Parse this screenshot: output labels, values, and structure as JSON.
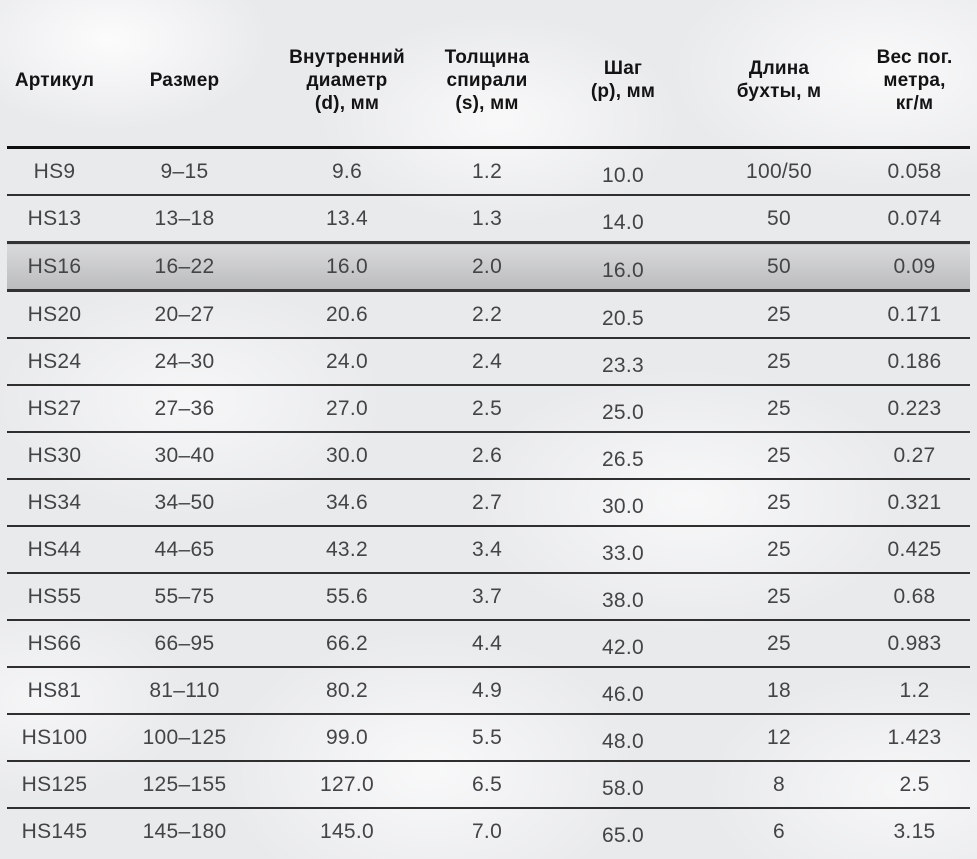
{
  "page": {
    "background_color": "#e9eaec",
    "text_color": "#434446",
    "header_text_color": "#131313",
    "separator_color": "#2f2f2f",
    "highlight_row_color": "#c9cacc"
  },
  "table": {
    "columns": [
      {
        "id": "article",
        "label": "Артикул",
        "lines": [
          "Артикул"
        ]
      },
      {
        "id": "size",
        "label": "Размер",
        "lines": [
          "Размер"
        ]
      },
      {
        "id": "inner-diameter",
        "label": "Внутренний диаметр (d), мм",
        "lines": [
          "Внутренний",
          "диаметр",
          "(d), мм"
        ]
      },
      {
        "id": "spiral-thickness",
        "label": "Толщина спирали (s), мм",
        "lines": [
          "Толщина",
          "спирали",
          "(s), мм"
        ]
      },
      {
        "id": "pitch",
        "label": "Шаг (р), мм",
        "lines": [
          "Шаг",
          "(р), мм"
        ]
      },
      {
        "id": "coil-length",
        "label": "Длина бухты, м",
        "lines": [
          "Длина",
          "бухты, м"
        ]
      },
      {
        "id": "weight",
        "label": "Вес пог. метра, кг/м",
        "lines": [
          "Вес пог.",
          "метра,",
          "кг/м"
        ]
      }
    ],
    "rows": [
      {
        "highlight": false,
        "values": [
          "HS9",
          "9–15",
          "9.6",
          "1.2",
          "10.0",
          "100/50",
          "0.058"
        ]
      },
      {
        "highlight": false,
        "values": [
          "HS13",
          "13–18",
          "13.4",
          "1.3",
          "14.0",
          "50",
          "0.074"
        ]
      },
      {
        "highlight": true,
        "values": [
          "HS16",
          "16–22",
          "16.0",
          "2.0",
          "16.0",
          "50",
          "0.09"
        ]
      },
      {
        "highlight": false,
        "values": [
          "HS20",
          "20–27",
          "20.6",
          "2.2",
          "20.5",
          "25",
          "0.171"
        ]
      },
      {
        "highlight": false,
        "values": [
          "HS24",
          "24–30",
          "24.0",
          "2.4",
          "23.3",
          "25",
          "0.186"
        ]
      },
      {
        "highlight": false,
        "values": [
          "HS27",
          "27–36",
          "27.0",
          "2.5",
          "25.0",
          "25",
          "0.223"
        ]
      },
      {
        "highlight": false,
        "values": [
          "HS30",
          "30–40",
          "30.0",
          "2.6",
          "26.5",
          "25",
          "0.27"
        ]
      },
      {
        "highlight": false,
        "values": [
          "HS34",
          "34–50",
          "34.6",
          "2.7",
          "30.0",
          "25",
          "0.321"
        ]
      },
      {
        "highlight": false,
        "values": [
          "HS44",
          "44–65",
          "43.2",
          "3.4",
          "33.0",
          "25",
          "0.425"
        ]
      },
      {
        "highlight": false,
        "values": [
          "HS55",
          "55–75",
          "55.6",
          "3.7",
          "38.0",
          "25",
          "0.68"
        ]
      },
      {
        "highlight": false,
        "values": [
          "HS66",
          "66–95",
          "66.2",
          "4.4",
          "42.0",
          "25",
          "0.983"
        ]
      },
      {
        "highlight": false,
        "values": [
          "HS81",
          "81–110",
          "80.2",
          "4.9",
          "46.0",
          "18",
          "1.2"
        ]
      },
      {
        "highlight": false,
        "values": [
          "HS100",
          "100–125",
          "99.0",
          "5.5",
          "48.0",
          "12",
          "1.423"
        ]
      },
      {
        "highlight": false,
        "values": [
          "HS125",
          "125–155",
          "127.0",
          "6.5",
          "58.0",
          "8",
          "2.5"
        ]
      },
      {
        "highlight": false,
        "values": [
          "HS145",
          "145–180",
          "145.0",
          "7.0",
          "65.0",
          "6",
          "3.15"
        ]
      }
    ]
  },
  "chart_data": {
    "type": "table",
    "title": "",
    "columns": [
      "Артикул",
      "Размер",
      "Внутренний диаметр (d), мм",
      "Толщина спирали (s), мм",
      "Шаг (р), мм",
      "Длина бухты, м",
      "Вес пог. метра, кг/м"
    ],
    "rows": [
      [
        "HS9",
        "9–15",
        9.6,
        1.2,
        10.0,
        "100/50",
        0.058
      ],
      [
        "HS13",
        "13–18",
        13.4,
        1.3,
        14.0,
        "50",
        0.074
      ],
      [
        "HS16",
        "16–22",
        16.0,
        2.0,
        16.0,
        "50",
        0.09
      ],
      [
        "HS20",
        "20–27",
        20.6,
        2.2,
        20.5,
        "25",
        0.171
      ],
      [
        "HS24",
        "24–30",
        24.0,
        2.4,
        23.3,
        "25",
        0.186
      ],
      [
        "HS27",
        "27–36",
        27.0,
        2.5,
        25.0,
        "25",
        0.223
      ],
      [
        "HS30",
        "30–40",
        30.0,
        2.6,
        26.5,
        "25",
        0.27
      ],
      [
        "HS34",
        "34–50",
        34.6,
        2.7,
        30.0,
        "25",
        0.321
      ],
      [
        "HS44",
        "44–65",
        43.2,
        3.4,
        33.0,
        "25",
        0.425
      ],
      [
        "HS55",
        "55–75",
        55.6,
        3.7,
        38.0,
        "25",
        0.68
      ],
      [
        "HS66",
        "66–95",
        66.2,
        4.4,
        42.0,
        "25",
        0.983
      ],
      [
        "HS81",
        "81–110",
        80.2,
        4.9,
        46.0,
        "18",
        1.2
      ],
      [
        "HS100",
        "100–125",
        99.0,
        5.5,
        48.0,
        "12",
        1.423
      ],
      [
        "HS125",
        "125–155",
        127.0,
        6.5,
        58.0,
        "8",
        2.5
      ],
      [
        "HS145",
        "145–180",
        145.0,
        7.0,
        65.0,
        "6",
        3.15
      ]
    ],
    "highlighted_row": "HS16"
  }
}
